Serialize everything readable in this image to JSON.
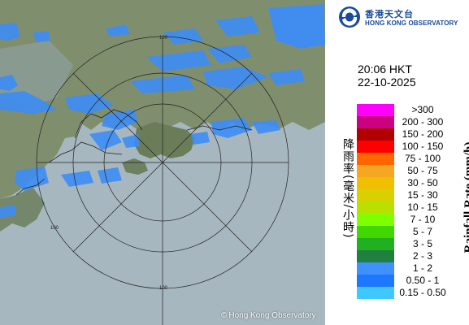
{
  "radar": {
    "ring_labels": [
      "100",
      "100",
      "100"
    ],
    "copyright": "Hong Kong Observatory",
    "copyright_symbol": "©"
  },
  "legend": {
    "logo_zh": "香港天文台",
    "logo_en": "HONG KONG OBSERVATORY",
    "time": "20:06 HKT",
    "date": "22-10-2025",
    "title_zh": "降雨率(毫米/小時)",
    "title_en": "Rainfall Rate (mm/h)",
    "scale": [
      {
        "label": ">300",
        "color": "#ff00ff"
      },
      {
        "label": "200 - 300",
        "color": "#cc0080"
      },
      {
        "label": "150 - 200",
        "color": "#b00000"
      },
      {
        "label": "100 - 150",
        "color": "#ff0000"
      },
      {
        "label": "75 - 100",
        "color": "#ff6600"
      },
      {
        "label": "50 - 75",
        "color": "#f5a623"
      },
      {
        "label": "30 - 50",
        "color": "#f0c000"
      },
      {
        "label": "15 - 30",
        "color": "#d8d000"
      },
      {
        "label": "10 - 15",
        "color": "#b8e000"
      },
      {
        "label": "7 - 10",
        "color": "#80ff00"
      },
      {
        "label": "5 - 7",
        "color": "#40d800"
      },
      {
        "label": "3 - 5",
        "color": "#20b020"
      },
      {
        "label": "2 - 3",
        "color": "#208040"
      },
      {
        "label": "1 - 2",
        "color": "#4090ff"
      },
      {
        "label": "0.50 - 1",
        "color": "#1e78ff"
      },
      {
        "label": "0.15 - 0.50",
        "color": "#3ec8ff"
      }
    ]
  }
}
